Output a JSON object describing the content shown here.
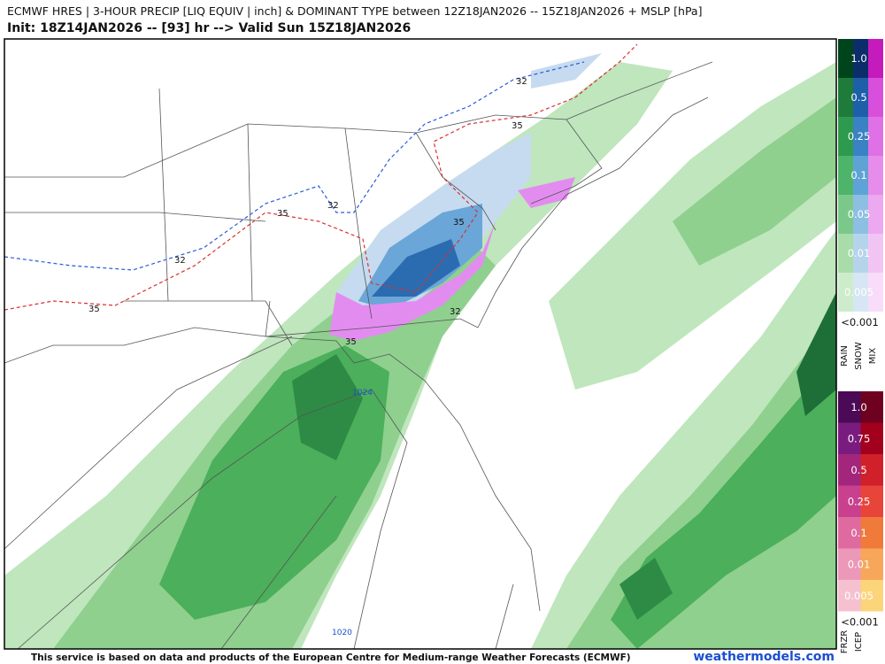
{
  "header": {
    "title": "ECMWF HRES | 3-HOUR PRECIP [LIQ EQUIV | inch] & DOMINANT TYPE between 12Z18JAN2026 -- 15Z18JAN2026 + MSLP [hPa]",
    "subtitle": "Init: 18Z14JAN2026 -- [93] hr --> Valid Sun 15Z18JAN2026"
  },
  "map": {
    "contour_labels": [
      "32",
      "32",
      "32",
      "32",
      "35",
      "35",
      "35",
      "35",
      "35",
      "1024",
      "1020"
    ]
  },
  "legend_precip": {
    "levels": [
      "1.0",
      "0.5",
      "0.25",
      "0.1",
      "0.05",
      "0.01",
      "0.005",
      "<0.001"
    ],
    "types": [
      "RAIN",
      "SNOW",
      "MIX"
    ]
  },
  "legend_ice": {
    "levels": [
      "1.0",
      "0.75",
      "0.5",
      "0.25",
      "0.1",
      "0.01",
      "0.005",
      "<0.001"
    ],
    "types": [
      "FRZR",
      "ICEP"
    ]
  },
  "footer": {
    "notice": "This service is based on data and products of the European Centre for Medium-range Weather Forecasts (ECMWF)",
    "brand": "weathermodels.com"
  }
}
